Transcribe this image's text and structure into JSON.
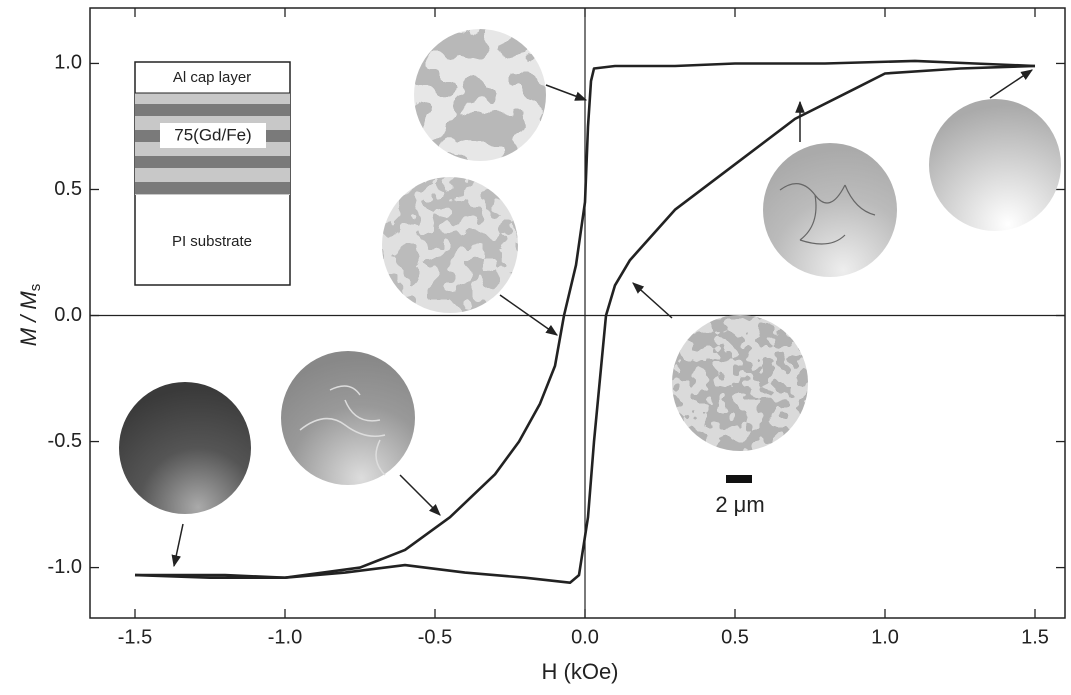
{
  "chart_data": {
    "type": "line",
    "xlabel": "H (kOe)",
    "ylabel": "M / M",
    "ylabel_subscript": "s",
    "annotations": [
      "Al cap layer",
      "75(Gd/Fe)",
      "PI substrate",
      "2 μm"
    ],
    "xlim": [
      -1.65,
      1.6
    ],
    "ylim": [
      -1.2,
      1.22
    ],
    "xticks": [
      {
        "value": -1.5,
        "label": "-1.5"
      },
      {
        "value": -1.0,
        "label": "-1.0"
      },
      {
        "value": -0.5,
        "label": "-0.5"
      },
      {
        "value": 0,
        "label": "0.0"
      },
      {
        "value": 0.5,
        "label": "0.5"
      },
      {
        "value": 1.0,
        "label": "1.0"
      },
      {
        "value": 1.5,
        "label": "1.5"
      }
    ],
    "yticks": [
      {
        "value": -1.0,
        "label": "-1.0"
      },
      {
        "value": -0.5,
        "label": "-0.5"
      },
      {
        "value": 0,
        "label": "0.0"
      },
      {
        "value": 0.5,
        "label": "0.5"
      },
      {
        "value": 1.0,
        "label": "1.0"
      }
    ],
    "series": [
      {
        "color": "#222222",
        "x": [
          1.5,
          1.3,
          1.1,
          0.8,
          0.5,
          0.3,
          0.1,
          0.03,
          0.02,
          0.01,
          0.0,
          -0.03,
          -0.07,
          -0.1,
          -0.15,
          -0.22,
          -0.3,
          -0.45,
          -0.6,
          -0.75,
          -1.0,
          -1.25,
          -1.5
        ],
        "values": [
          0.99,
          1.0,
          1.01,
          1.0,
          1.0,
          0.99,
          0.99,
          0.98,
          0.93,
          0.75,
          0.45,
          0.2,
          0.0,
          -0.2,
          -0.35,
          -0.5,
          -0.63,
          -0.8,
          -0.93,
          -1.0,
          -1.04,
          -1.04,
          -1.03
        ]
      },
      {
        "color": "#222222",
        "x": [
          -1.5,
          -1.2,
          -1.0,
          -0.8,
          -0.6,
          -0.4,
          -0.2,
          -0.05,
          -0.02,
          0.01,
          0.03,
          0.05,
          0.07,
          0.1,
          0.15,
          0.3,
          0.5,
          0.7,
          0.9,
          1.0,
          1.25,
          1.5
        ],
        "values": [
          -1.03,
          -1.03,
          -1.04,
          -1.02,
          -0.99,
          -1.02,
          -1.04,
          -1.06,
          -1.03,
          -0.8,
          -0.5,
          -0.25,
          0.0,
          0.12,
          0.22,
          0.42,
          0.6,
          0.78,
          0.9,
          0.96,
          0.98,
          0.99
        ]
      }
    ]
  }
}
